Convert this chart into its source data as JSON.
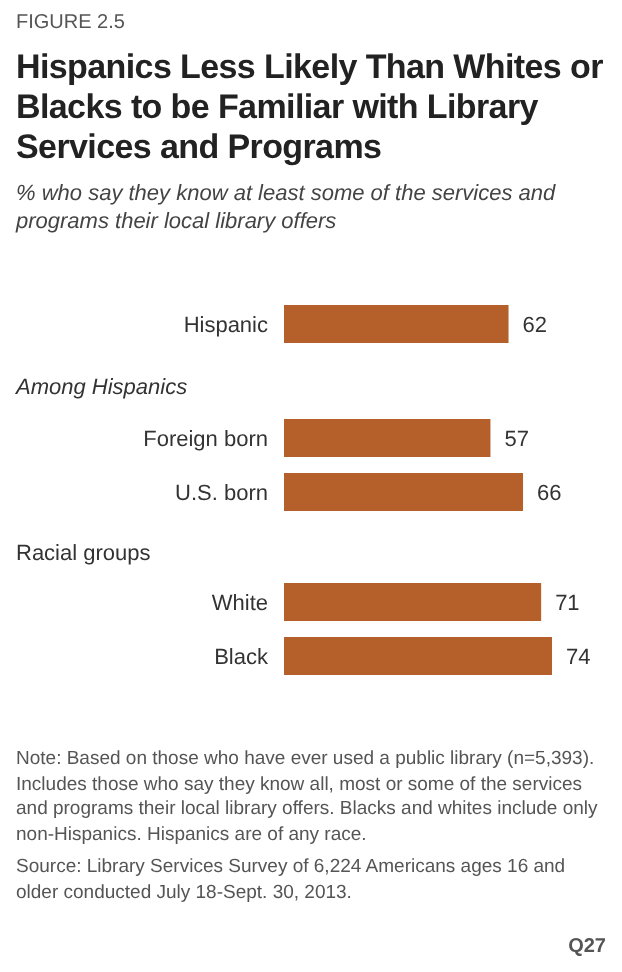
{
  "chart_data": {
    "type": "bar",
    "orientation": "horizontal",
    "title": "Hispanics Less Likely Than Whites or Blacks to be Familiar with Library Services and Programs",
    "subtitle": "% who say they know at least some of the services and programs their local library offers",
    "categories": [
      "Hispanic",
      "Foreign born",
      "U.S. born",
      "White",
      "Black"
    ],
    "values": [
      62,
      57,
      66,
      71,
      74
    ],
    "color": "#b5602a",
    "data_labels": true,
    "annotations": [
      "FIGURE 2.5",
      "Among Hispanics",
      "Racial groups",
      "Note: Based on those who have ever used a public library (n=5,393). Includes those who say they know all, most or some of the services and programs their local library offers. Blacks and whites include only non-Hispanics. Hispanics are of any race.",
      "Source: Library Services Survey of 6,224 Americans ages 16 and older conducted July 18-Sept. 30, 2013.",
      "Q27"
    ]
  }
}
